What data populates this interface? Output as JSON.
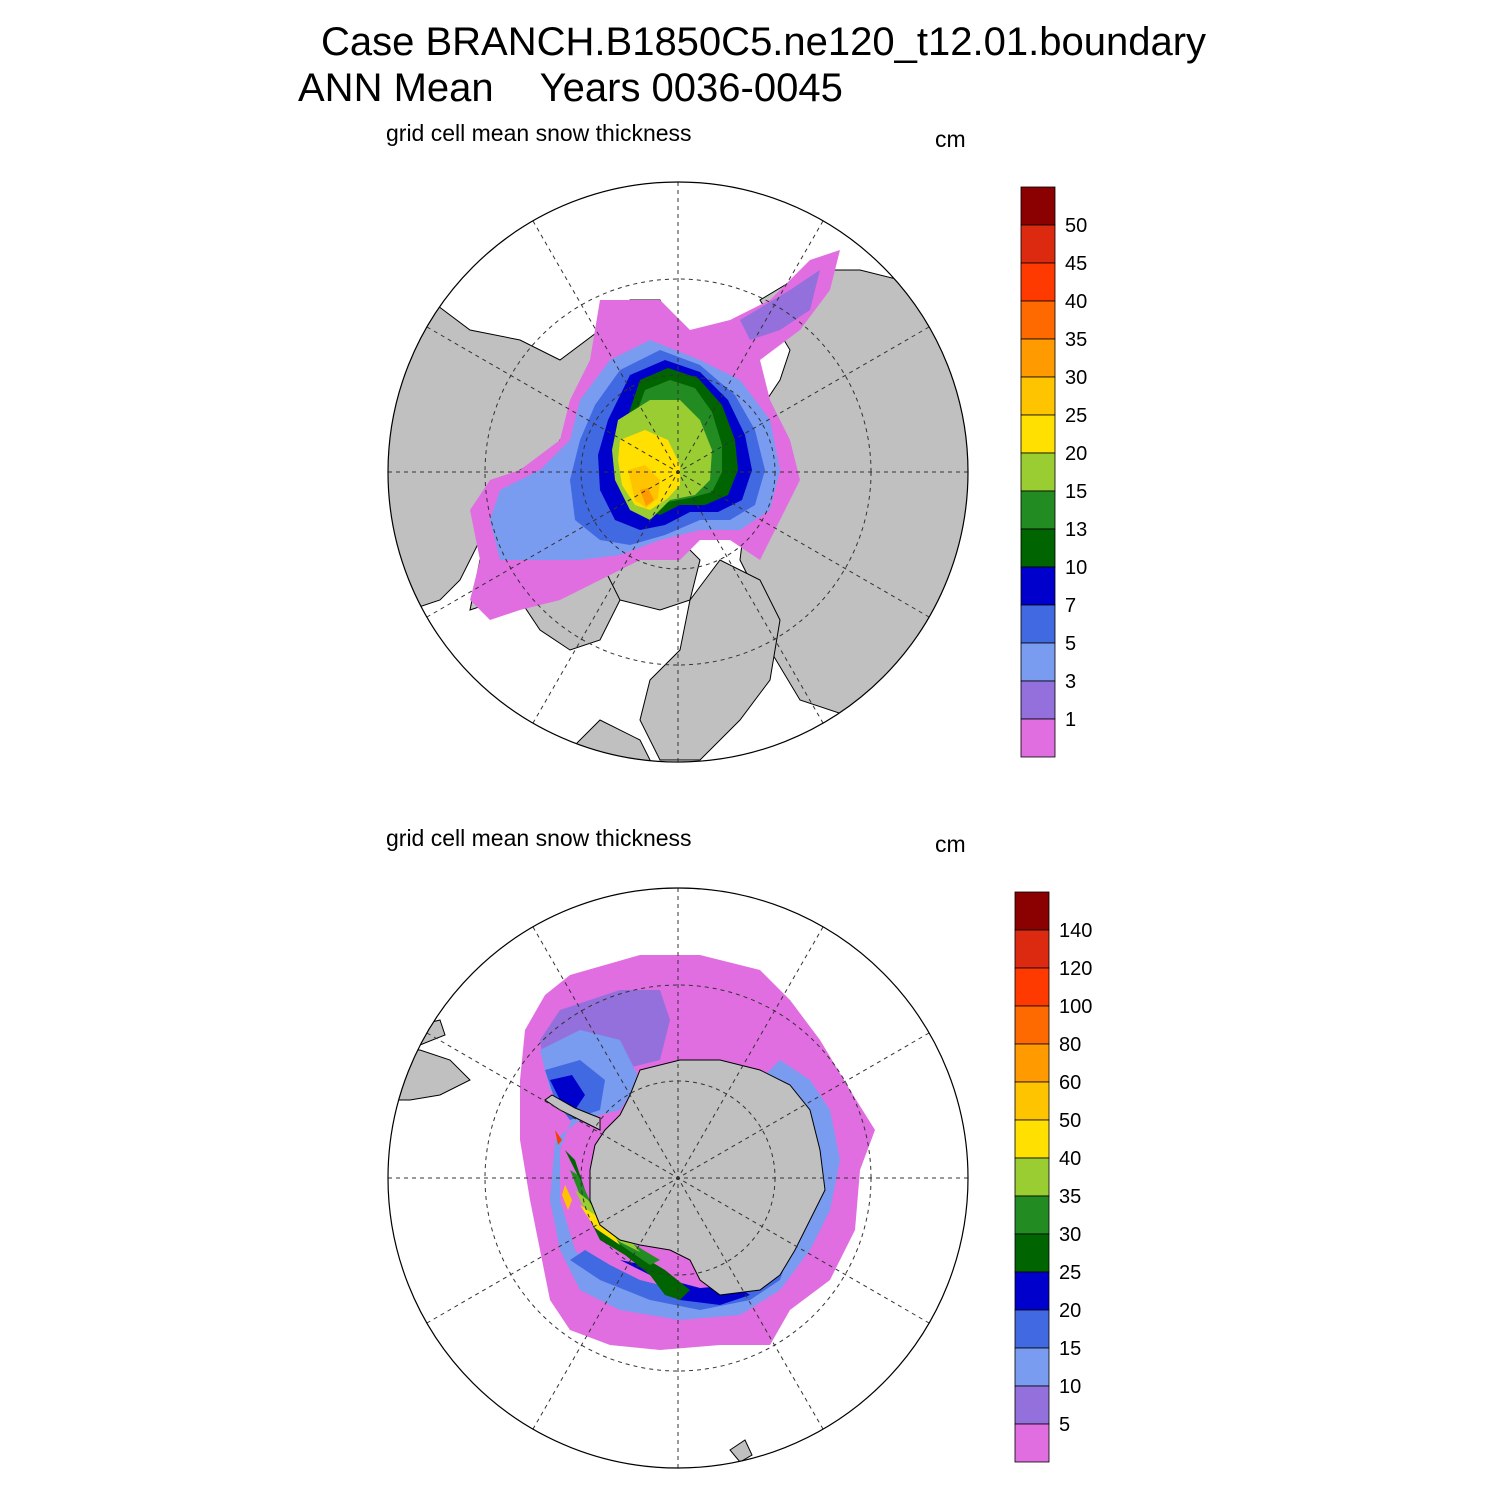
{
  "title": {
    "case_line": "Case BRANCH.B1850C5.ne120_t12.01.boundary",
    "mean_label": "ANN Mean",
    "years_label": "Years 0036-0045"
  },
  "panels": [
    {
      "hemisphere": "north",
      "variable_label": "grid cell mean snow thickness",
      "units": "cm",
      "colorbar": {
        "tick_labels": [
          "1",
          "3",
          "5",
          "7",
          "10",
          "13",
          "15",
          "20",
          "25",
          "30",
          "35",
          "40",
          "45",
          "50"
        ],
        "colors": [
          "#e06ee0",
          "#9370db",
          "#7a9cf0",
          "#4169e1",
          "#0000cd",
          "#006400",
          "#228b22",
          "#9acd32",
          "#ffe000",
          "#ffc400",
          "#ff9a00",
          "#ff6a00",
          "#ff3a00",
          "#dc2a10",
          "#8b0000"
        ]
      }
    },
    {
      "hemisphere": "south",
      "variable_label": "grid cell mean snow thickness",
      "units": "cm",
      "colorbar": {
        "tick_labels": [
          "5",
          "10",
          "15",
          "20",
          "25",
          "30",
          "35",
          "40",
          "50",
          "60",
          "80",
          "100",
          "120",
          "140"
        ],
        "colors": [
          "#e06ee0",
          "#9370db",
          "#7a9cf0",
          "#4169e1",
          "#0000cd",
          "#006400",
          "#228b22",
          "#9acd32",
          "#ffe000",
          "#ffc400",
          "#ff9a00",
          "#ff6a00",
          "#ff3a00",
          "#dc2a10",
          "#8b0000"
        ]
      }
    }
  ],
  "colors": {
    "land": "#c0c0c0",
    "ocean": "#ffffff",
    "grid_line": "#333333"
  }
}
